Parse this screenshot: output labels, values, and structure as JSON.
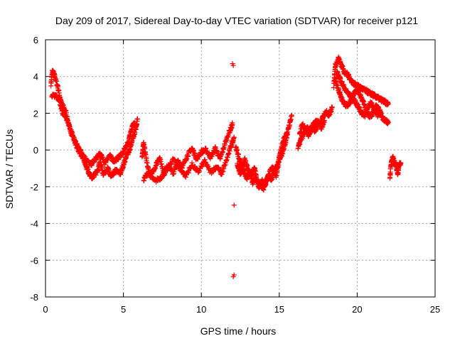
{
  "chart_data": {
    "type": "scatter",
    "title": "Day 209 of 2017, Sidereal Day-to-day VTEC variation (SDTVAR) for receiver p121",
    "xlabel": "GPS time / hours",
    "ylabel": "SDTVAR / TECUs",
    "xlim": [
      0,
      25
    ],
    "ylim": [
      -8,
      6
    ],
    "xticks": [
      0,
      5,
      10,
      15,
      20,
      25
    ],
    "yticks": [
      -8,
      -6,
      -4,
      -2,
      0,
      2,
      4,
      6
    ],
    "grid": true,
    "marker": "plus",
    "color": "#ff0000",
    "series": [
      {
        "name": "SDTVAR",
        "segments": [
          [
            [
              0.35,
              3.6
            ],
            [
              0.45,
              4.3
            ],
            [
              0.6,
              4.0
            ],
            [
              0.8,
              3.4
            ],
            [
              1.0,
              2.6
            ],
            [
              1.3,
              2.1
            ],
            [
              1.5,
              1.3
            ],
            [
              1.8,
              0.6
            ],
            [
              2.1,
              0.0
            ],
            [
              2.4,
              -0.4
            ],
            [
              2.6,
              -0.9
            ],
            [
              2.8,
              -1.3
            ],
            [
              3.0,
              -1.5
            ],
            [
              3.3,
              -1.2
            ],
            [
              3.5,
              -0.6
            ],
            [
              3.7,
              -1.3
            ],
            [
              4.0,
              -1.0
            ],
            [
              4.2,
              -1.5
            ],
            [
              4.5,
              -1.1
            ],
            [
              4.8,
              -1.3
            ],
            [
              5.0,
              -0.8
            ],
            [
              5.2,
              -0.3
            ],
            [
              5.4,
              0.0
            ],
            [
              5.6,
              0.6
            ],
            [
              5.8,
              1.2
            ],
            [
              5.9,
              1.7
            ]
          ],
          [
            [
              0.4,
              2.9
            ],
            [
              0.7,
              3.0
            ],
            [
              0.9,
              2.7
            ],
            [
              1.1,
              2.0
            ],
            [
              1.4,
              1.6
            ],
            [
              1.7,
              0.9
            ],
            [
              2.0,
              0.3
            ],
            [
              2.3,
              -0.1
            ],
            [
              2.6,
              -0.5
            ],
            [
              2.9,
              -0.8
            ],
            [
              3.2,
              -0.5
            ],
            [
              3.5,
              -0.2
            ],
            [
              3.8,
              -0.7
            ],
            [
              4.1,
              -0.3
            ],
            [
              4.4,
              -0.6
            ],
            [
              4.7,
              -0.4
            ],
            [
              5.0,
              -0.1
            ],
            [
              5.3,
              0.4
            ],
            [
              5.5,
              1.1
            ],
            [
              5.7,
              1.5
            ]
          ],
          [
            [
              6.2,
              -0.3
            ],
            [
              6.3,
              0.4
            ],
            [
              6.5,
              -0.7
            ],
            [
              6.7,
              -1.4
            ],
            [
              7.0,
              -1.0
            ],
            [
              7.3,
              -0.4
            ],
            [
              7.6,
              -1.2
            ],
            [
              7.9,
              -0.8
            ],
            [
              8.2,
              -1.3
            ],
            [
              8.5,
              -0.6
            ],
            [
              8.8,
              -0.9
            ],
            [
              9.1,
              -0.3
            ],
            [
              9.4,
              0.1
            ],
            [
              9.7,
              -0.5
            ],
            [
              10.0,
              -0.1
            ],
            [
              10.3,
              0.0
            ],
            [
              10.6,
              -0.4
            ],
            [
              10.9,
              0.1
            ],
            [
              11.2,
              -0.5
            ],
            [
              11.5,
              0.3
            ],
            [
              11.8,
              1.0
            ],
            [
              12.0,
              1.4
            ]
          ],
          [
            [
              6.3,
              -1.6
            ],
            [
              6.6,
              -1.2
            ],
            [
              7.0,
              -1.7
            ],
            [
              7.4,
              -1.5
            ],
            [
              7.8,
              -1.1
            ],
            [
              8.2,
              -0.5
            ],
            [
              8.6,
              -1.0
            ],
            [
              9.0,
              -1.4
            ],
            [
              9.4,
              -0.8
            ],
            [
              9.8,
              -1.2
            ],
            [
              10.2,
              -0.6
            ],
            [
              10.6,
              -1.2
            ],
            [
              11.0,
              -0.9
            ],
            [
              11.3,
              -1.3
            ],
            [
              11.6,
              -0.6
            ],
            [
              11.9,
              0.2
            ],
            [
              12.1,
              0.7
            ]
          ],
          [
            [
              12.2,
              0.2
            ],
            [
              12.4,
              -0.4
            ],
            [
              12.6,
              -0.9
            ],
            [
              12.8,
              -0.5
            ],
            [
              13.0,
              -1.1
            ],
            [
              13.2,
              -1.4
            ],
            [
              13.4,
              -1.0
            ],
            [
              13.6,
              -1.7
            ],
            [
              13.8,
              -1.9
            ],
            [
              14.0,
              -2.1
            ],
            [
              14.2,
              -1.6
            ],
            [
              14.4,
              -1.2
            ],
            [
              14.6,
              -0.9
            ],
            [
              14.8,
              -1.4
            ],
            [
              15.0,
              -0.5
            ],
            [
              15.2,
              -0.2
            ],
            [
              15.4,
              0.4
            ],
            [
              15.6,
              1.2
            ],
            [
              15.8,
              1.9
            ]
          ],
          [
            [
              12.3,
              -0.8
            ],
            [
              12.5,
              -1.3
            ],
            [
              12.7,
              -1.0
            ],
            [
              12.9,
              -1.6
            ],
            [
              13.1,
              -1.2
            ],
            [
              13.3,
              -1.8
            ],
            [
              13.5,
              -1.5
            ],
            [
              13.7,
              -2.0
            ],
            [
              13.9,
              -1.7
            ],
            [
              14.1,
              -1.9
            ],
            [
              14.3,
              -1.4
            ],
            [
              14.5,
              -1.6
            ],
            [
              14.7,
              -1.1
            ],
            [
              14.9,
              -0.8
            ],
            [
              15.1,
              0.0
            ],
            [
              15.3,
              0.6
            ],
            [
              15.5,
              0.9
            ]
          ],
          [
            [
              16.2,
              0.1
            ],
            [
              16.4,
              0.6
            ],
            [
              16.6,
              0.9
            ],
            [
              16.8,
              1.2
            ],
            [
              17.0,
              1.0
            ],
            [
              17.2,
              1.4
            ],
            [
              17.4,
              1.6
            ],
            [
              17.6,
              1.3
            ],
            [
              17.8,
              1.8
            ],
            [
              18.0,
              2.1
            ],
            [
              18.2,
              1.9
            ],
            [
              18.4,
              2.3
            ]
          ],
          [
            [
              16.3,
              0.9
            ],
            [
              16.5,
              1.4
            ],
            [
              16.7,
              1.1
            ],
            [
              16.9,
              0.8
            ],
            [
              17.1,
              1.3
            ],
            [
              17.3,
              1.0
            ],
            [
              17.5,
              1.5
            ],
            [
              17.7,
              1.2
            ],
            [
              17.9,
              1.6
            ]
          ],
          [
            [
              18.5,
              3.5
            ],
            [
              18.6,
              4.6
            ],
            [
              18.8,
              5.0
            ],
            [
              19.0,
              4.6
            ],
            [
              19.2,
              4.2
            ],
            [
              19.4,
              4.1
            ],
            [
              19.6,
              3.8
            ],
            [
              19.8,
              3.6
            ],
            [
              20.0,
              3.5
            ],
            [
              20.2,
              3.4
            ],
            [
              20.4,
              3.3
            ],
            [
              20.6,
              3.2
            ],
            [
              20.8,
              3.1
            ],
            [
              21.0,
              3.0
            ],
            [
              21.2,
              2.9
            ],
            [
              21.4,
              2.8
            ],
            [
              21.6,
              2.7
            ],
            [
              21.8,
              2.6
            ],
            [
              22.0,
              2.5
            ]
          ],
          [
            [
              18.6,
              3.8
            ],
            [
              18.8,
              3.3
            ],
            [
              19.0,
              2.8
            ],
            [
              19.2,
              2.5
            ],
            [
              19.4,
              2.4
            ],
            [
              19.6,
              2.7
            ],
            [
              19.8,
              3.1
            ],
            [
              20.0,
              3.3
            ],
            [
              20.2,
              3.0
            ],
            [
              20.4,
              2.6
            ],
            [
              20.6,
              2.1
            ],
            [
              20.8,
              1.8
            ],
            [
              21.0,
              2.0
            ],
            [
              21.2,
              2.4
            ],
            [
              21.4,
              2.2
            ],
            [
              21.6,
              1.8
            ],
            [
              21.8,
              1.6
            ],
            [
              22.0,
              1.5
            ]
          ],
          [
            [
              18.7,
              4.2
            ],
            [
              18.9,
              3.9
            ],
            [
              19.1,
              3.5
            ],
            [
              19.3,
              3.2
            ],
            [
              19.5,
              3.0
            ],
            [
              19.7,
              2.8
            ],
            [
              19.9,
              2.6
            ],
            [
              20.1,
              2.3
            ],
            [
              20.3,
              2.0
            ],
            [
              20.5,
              1.9
            ],
            [
              20.7,
              2.3
            ],
            [
              20.9,
              2.6
            ],
            [
              21.1,
              2.2
            ],
            [
              21.3,
              1.9
            ],
            [
              21.5,
              2.1
            ]
          ],
          [
            [
              22.1,
              -1.5
            ],
            [
              22.2,
              -0.6
            ],
            [
              22.3,
              -0.4
            ],
            [
              22.5,
              -0.9
            ],
            [
              22.6,
              -1.3
            ],
            [
              22.7,
              -0.8
            ],
            [
              22.8,
              -0.7
            ]
          ]
        ],
        "isolated": [
          [
            12.0,
            4.7
          ],
          [
            12.05,
            4.6
          ],
          [
            12.1,
            -3.0
          ],
          [
            12.05,
            -6.9
          ],
          [
            12.1,
            -6.8
          ]
        ]
      }
    ]
  }
}
